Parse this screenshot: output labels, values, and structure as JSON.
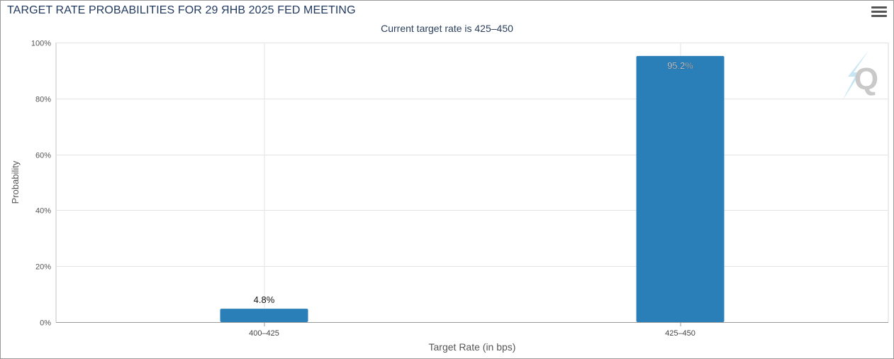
{
  "header": {
    "title": "TARGET RATE PROBABILITIES FOR 29 ЯНВ 2025 FED MEETING",
    "subtitle": "Current target rate is 425–450",
    "menu_icon": "hamburger-menu-icon"
  },
  "watermark": {
    "text": "Q",
    "icon": "quikstrike-q-logo"
  },
  "colors": {
    "bar": "#2b7fb8",
    "title": "#223a5e",
    "axis_text": "#555555",
    "grid": "#e3e3e3"
  },
  "chart_data": {
    "type": "bar",
    "title": "TARGET RATE PROBABILITIES FOR 29 ЯНВ 2025 FED MEETING",
    "subtitle": "Current target rate is 425–450",
    "categories": [
      "400–425",
      "425–450"
    ],
    "values": [
      4.8,
      95.2
    ],
    "data_labels": [
      "4.8%",
      "95.2%"
    ],
    "xlabel": "Target Rate (in bps)",
    "ylabel": "Probability",
    "ylim": [
      0,
      100
    ],
    "yticks": [
      0,
      20,
      40,
      60,
      80,
      100
    ],
    "ytick_labels": [
      "0%",
      "20%",
      "40%",
      "60%",
      "80%",
      "100%"
    ],
    "grid": true,
    "legend": "none"
  }
}
